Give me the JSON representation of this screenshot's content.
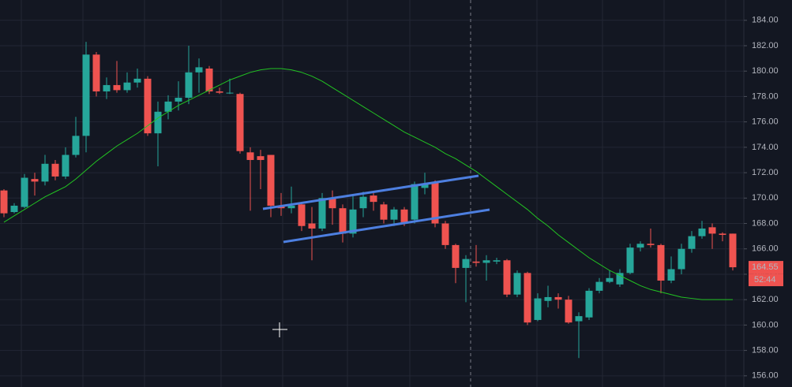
{
  "chart_data": {
    "type": "candlestick",
    "up_color": "#26a69a",
    "down_color": "#ef5350",
    "open": [
      170.6,
      168.9,
      169.3,
      171.5,
      171.3,
      172.7,
      171.7,
      173.4,
      174.9,
      181.3,
      178.4,
      178.9,
      178.5,
      179.1,
      179.4,
      175.1,
      176.8,
      177.6,
      177.9,
      179.9,
      180.2,
      178.4,
      178.3,
      178.2,
      173.6,
      173.3,
      173.4,
      169.4,
      169.2,
      169.5,
      168,
      167.6,
      170,
      169.2,
      167.2,
      169.2,
      170.2,
      169.5,
      168.3,
      169.1,
      168.3,
      170.8,
      171.2,
      168,
      166.3,
      164.5,
      165,
      164.9,
      165,
      165.1,
      162.4,
      164.1,
      160.4,
      161.9,
      162.2,
      162,
      160.3,
      160.6,
      162.7,
      163.4,
      163.2,
      164.1,
      166.1,
      166.4,
      166.3,
      163.5,
      164.4,
      166,
      167,
      167.7,
      167.2,
      167.2
    ],
    "high": [
      170.7,
      169.6,
      171.9,
      172,
      173.4,
      173,
      174,
      176.4,
      182.3,
      181.5,
      179.5,
      180.8,
      179.9,
      180.2,
      179.6,
      177.6,
      178.1,
      179.2,
      182,
      181,
      180.4,
      178.7,
      179.4,
      178.3,
      174,
      173.8,
      173.4,
      170.4,
      170.9,
      169.7,
      169.3,
      170.4,
      170.6,
      169.5,
      170.2,
      170.5,
      170.5,
      169.7,
      169.3,
      169.3,
      171.3,
      172,
      171.4,
      168.2,
      166.4,
      165.5,
      166.3,
      165.5,
      165.3,
      165.2,
      164.3,
      164.2,
      162.5,
      163.1,
      162.5,
      162.3,
      161,
      162.9,
      163.7,
      164.3,
      164.4,
      166.4,
      166.6,
      167.6,
      166.4,
      165.4,
      166.4,
      167.4,
      168.2,
      168,
      167.3,
      167.2
    ],
    "low": [
      168.5,
      168.8,
      169.2,
      170.2,
      171,
      171.4,
      171.5,
      173.2,
      173.6,
      178,
      177.8,
      178.3,
      178.3,
      178.7,
      174.9,
      172.5,
      176.2,
      176.9,
      177.4,
      178.3,
      178.2,
      178.2,
      178.2,
      173.5,
      169,
      170.7,
      168.5,
      168.6,
      168.8,
      167.4,
      165.1,
      167.4,
      167.9,
      166.5,
      166.9,
      168.5,
      169,
      168,
      167.8,
      167.8,
      168,
      170.3,
      167.7,
      166,
      163.3,
      161.8,
      164.6,
      163.5,
      164.8,
      162.2,
      162.2,
      160,
      160.3,
      161.4,
      161.3,
      160.1,
      157.4,
      160.4,
      162.5,
      163.3,
      163,
      164,
      165.8,
      166.1,
      162.5,
      163.3,
      164,
      165.7,
      166.8,
      166,
      166.6,
      164.3
    ],
    "close": [
      168.8,
      169.4,
      171.6,
      171.3,
      172.7,
      171.7,
      173.4,
      174.9,
      181.3,
      178.4,
      178.9,
      178.5,
      179.1,
      179.4,
      175.1,
      176.8,
      177.6,
      177.9,
      179.9,
      180.3,
      178.4,
      178.3,
      178.3,
      173.7,
      173,
      173,
      169.4,
      169.2,
      169.4,
      167.8,
      167.6,
      170,
      169.2,
      167.2,
      169.1,
      170.1,
      169.7,
      168.3,
      169.1,
      168.1,
      171.1,
      171.1,
      168,
      166.3,
      164.5,
      165.2,
      164.9,
      165.1,
      165.1,
      162.4,
      164.1,
      160.2,
      162.1,
      162.2,
      162,
      160.2,
      160.7,
      162.7,
      163.4,
      163.7,
      164.1,
      166.1,
      166.4,
      166.3,
      163.5,
      164.4,
      166,
      167,
      167.6,
      167.2,
      167.1,
      164.55
    ],
    "moving_average": {
      "color": "#22c322",
      "values": [
        168.1,
        168.6,
        169.1,
        169.6,
        170.1,
        170.5,
        170.9,
        171.5,
        172.2,
        172.9,
        173.5,
        174.1,
        174.6,
        175.1,
        175.7,
        176.3,
        176.8,
        177.3,
        177.7,
        178.1,
        178.5,
        178.9,
        179.3,
        179.6,
        179.9,
        180.1,
        180.2,
        180.2,
        180.1,
        179.9,
        179.6,
        179.2,
        178.7,
        178.2,
        177.7,
        177.2,
        176.7,
        176.2,
        175.7,
        175.2,
        174.8,
        174.4,
        174.0,
        173.5,
        173.1,
        172.6,
        172.1,
        171.5,
        170.9,
        170.3,
        169.7,
        169.1,
        168.4,
        167.8,
        167.1,
        166.5,
        165.9,
        165.3,
        164.8,
        164.3,
        163.9,
        163.5,
        163.1,
        162.8,
        162.6,
        162.4,
        162.2,
        162.1,
        162.0,
        162.0,
        162.0,
        162.0
      ]
    },
    "ylim": [
      155.12,
      185.6
    ],
    "yticks": [
      {
        "value": 156,
        "label": "156.00"
      },
      {
        "value": 158,
        "label": "158.00"
      },
      {
        "value": 160,
        "label": "160.00"
      },
      {
        "value": 162,
        "label": "162.00"
      },
      {
        "value": 164,
        "label": "164.00"
      },
      {
        "value": 166,
        "label": "166.00"
      },
      {
        "value": 168,
        "label": "168.00"
      },
      {
        "value": 170,
        "label": "170.00"
      },
      {
        "value": 172,
        "label": "172.00"
      },
      {
        "value": 174,
        "label": "174.00"
      },
      {
        "value": 176,
        "label": "176.00"
      },
      {
        "value": 178,
        "label": "178.00"
      },
      {
        "value": 180,
        "label": "180.00"
      },
      {
        "value": 182,
        "label": "182.00"
      },
      {
        "value": 184,
        "label": "184.00"
      }
    ],
    "grid": true,
    "last_price": {
      "value": 164.55,
      "label": "164.55"
    },
    "countdown": "52:44"
  }
}
